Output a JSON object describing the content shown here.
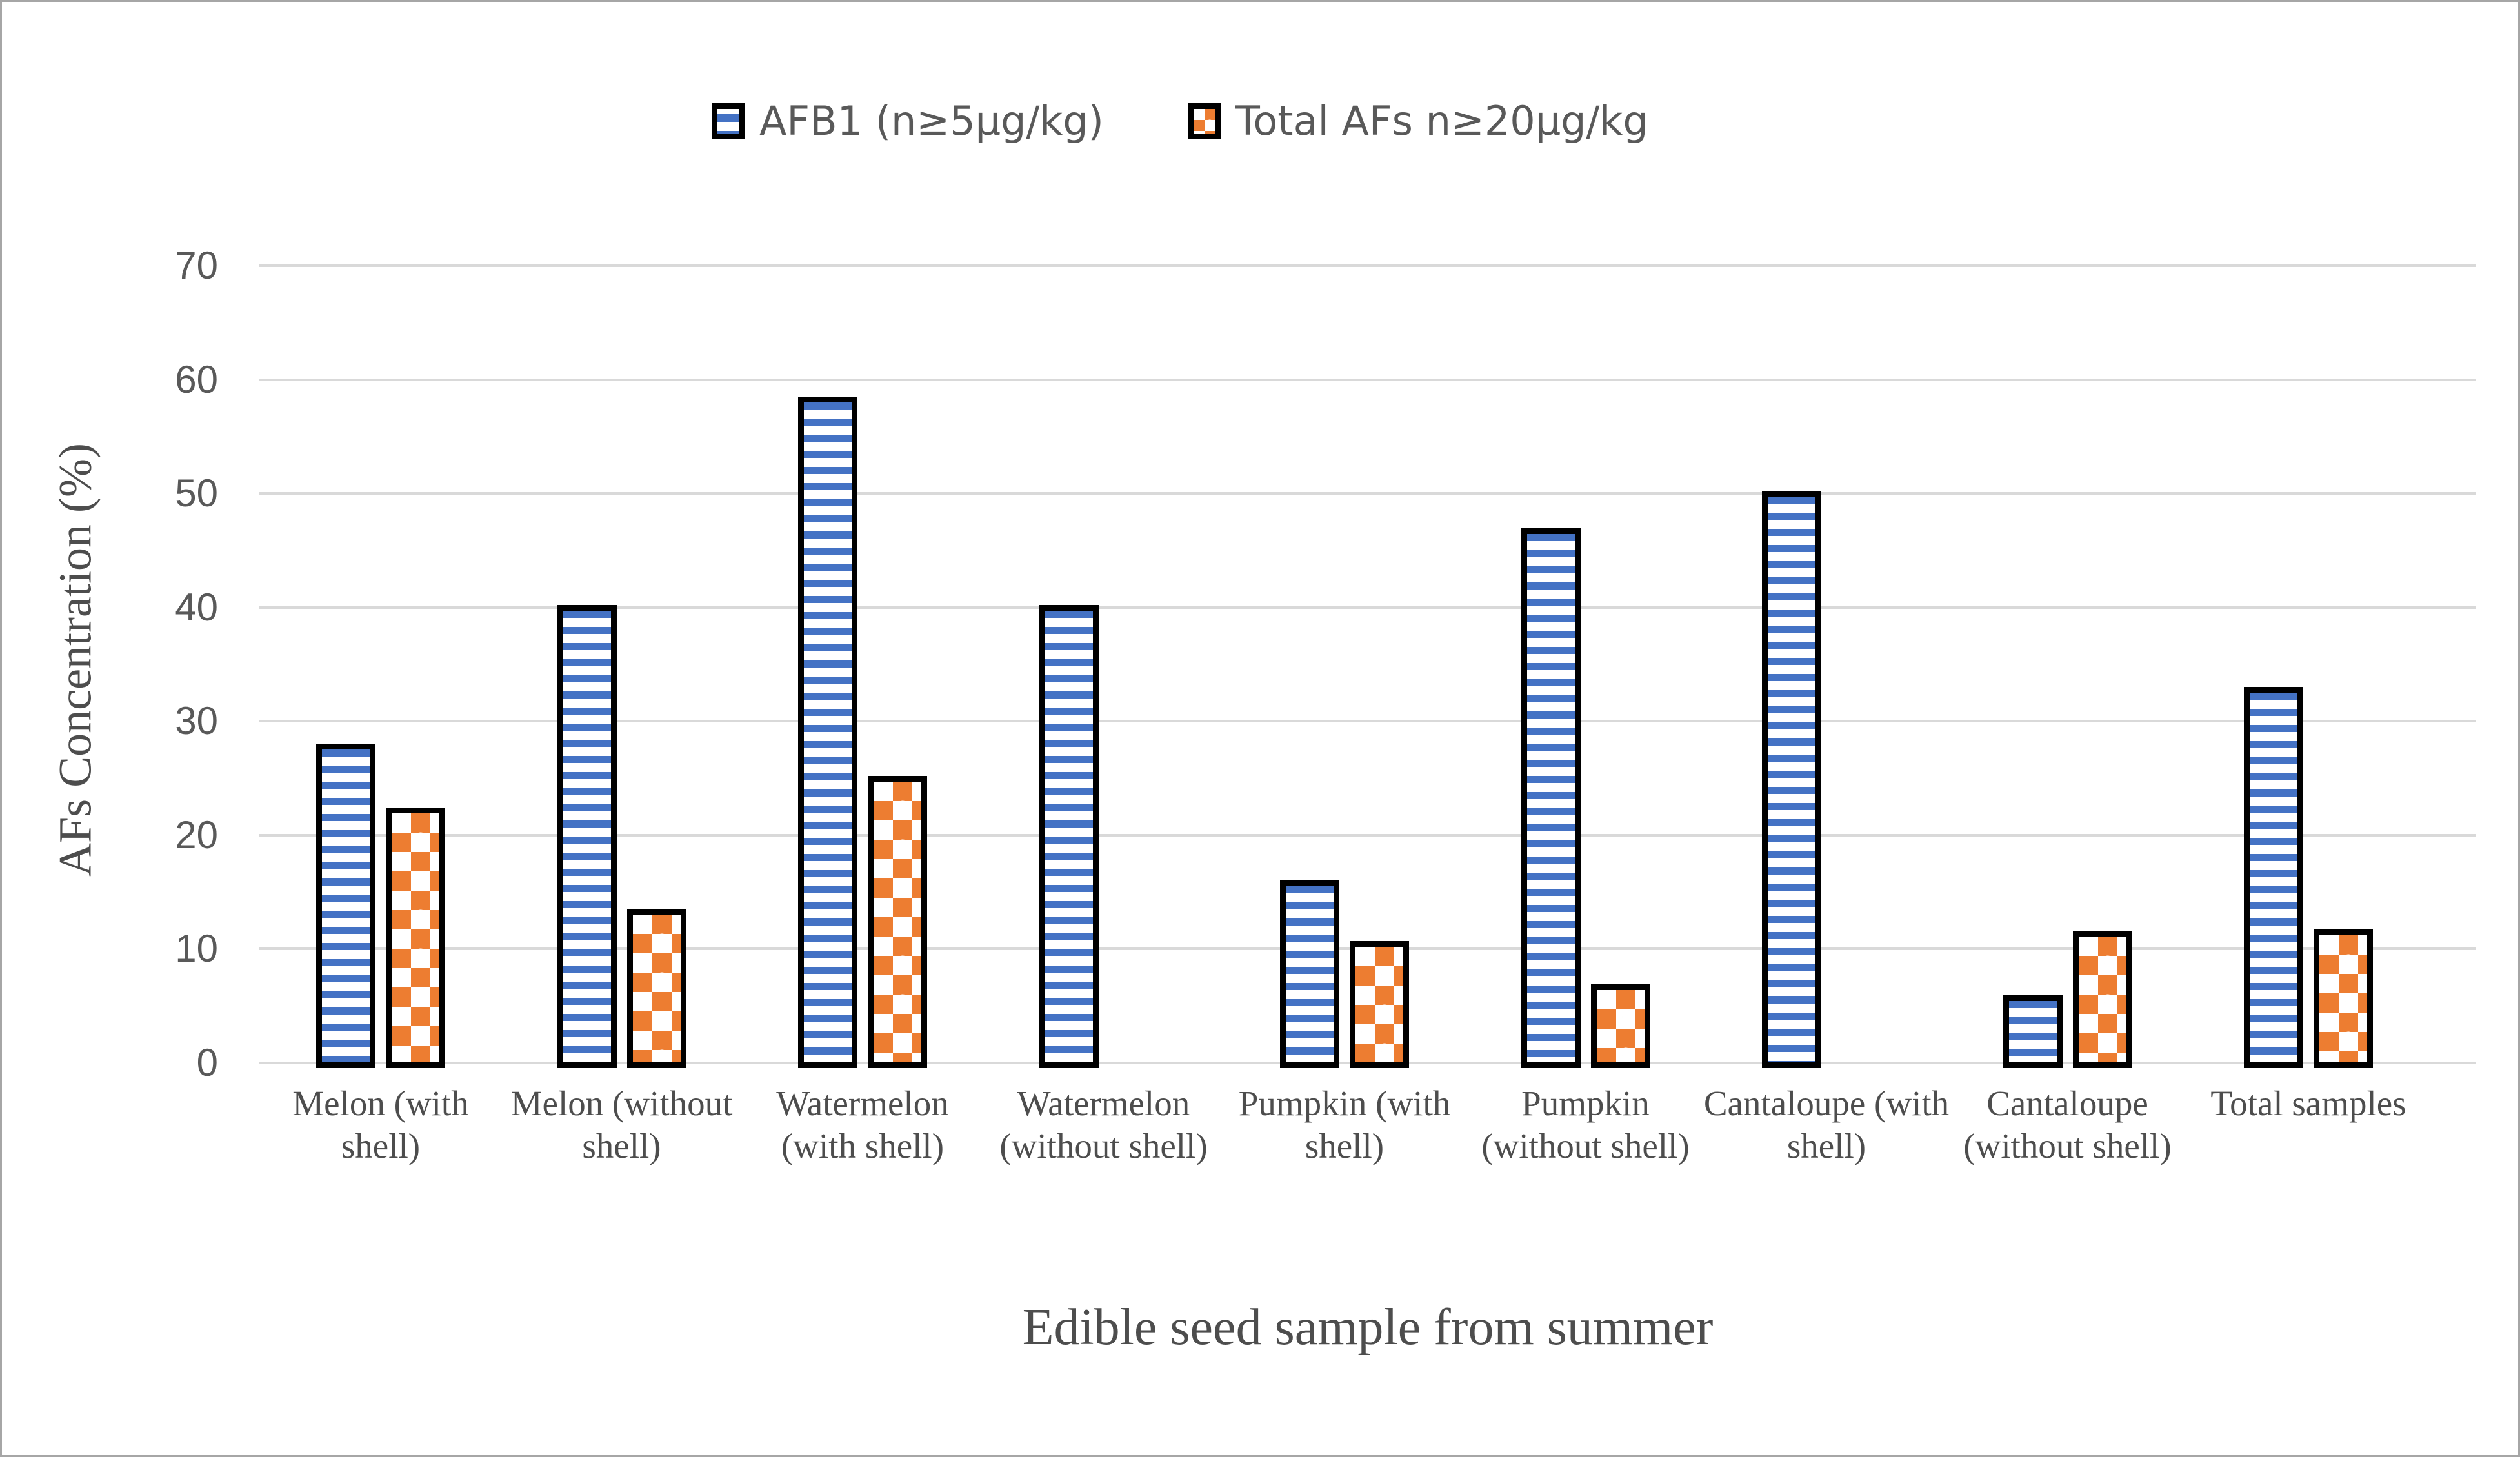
{
  "figure": {
    "background_color": "#ffffff",
    "frame_border_color": "#a6a6a6"
  },
  "chart_data": {
    "type": "bar",
    "title": "",
    "xlabel": "Edible seed sample from summer",
    "ylabel": "AFs Concentration (%)",
    "ylim": [
      0,
      70
    ],
    "yticks": [
      0,
      10,
      20,
      30,
      40,
      50,
      60,
      70
    ],
    "grid": true,
    "legend_position": "top-center",
    "gridline_color": "#d9d9d9",
    "tick_label_color": "#595959",
    "axis_title_color": "#4d4d4d",
    "bar_border_color": "#000000",
    "categories": [
      "Melon (with shell)",
      "Melon (without shell)",
      "Watermelon (with shell)",
      "Watermelon (without shell)",
      "Pumpkin (with shell)",
      "Pumpkin (without shell)",
      "Cantaloupe (with shell)",
      "Cantaloupe (without shell)",
      "Total samples"
    ],
    "series": [
      {
        "name": "AFB1 (n≥5µg/kg)",
        "color": "#4472C4",
        "pattern": "horizontal-stripes",
        "values": [
          27.8,
          40,
          58.3,
          40,
          15.8,
          46.7,
          50,
          5.7,
          32.8
        ]
      },
      {
        "name": "Total AFs n≥20µg/kg",
        "color": "#ED7D31",
        "pattern": "checker-dots",
        "values": [
          22.2,
          13.3,
          25,
          0,
          10.5,
          6.7,
          0,
          11.4,
          11.5
        ]
      }
    ]
  }
}
